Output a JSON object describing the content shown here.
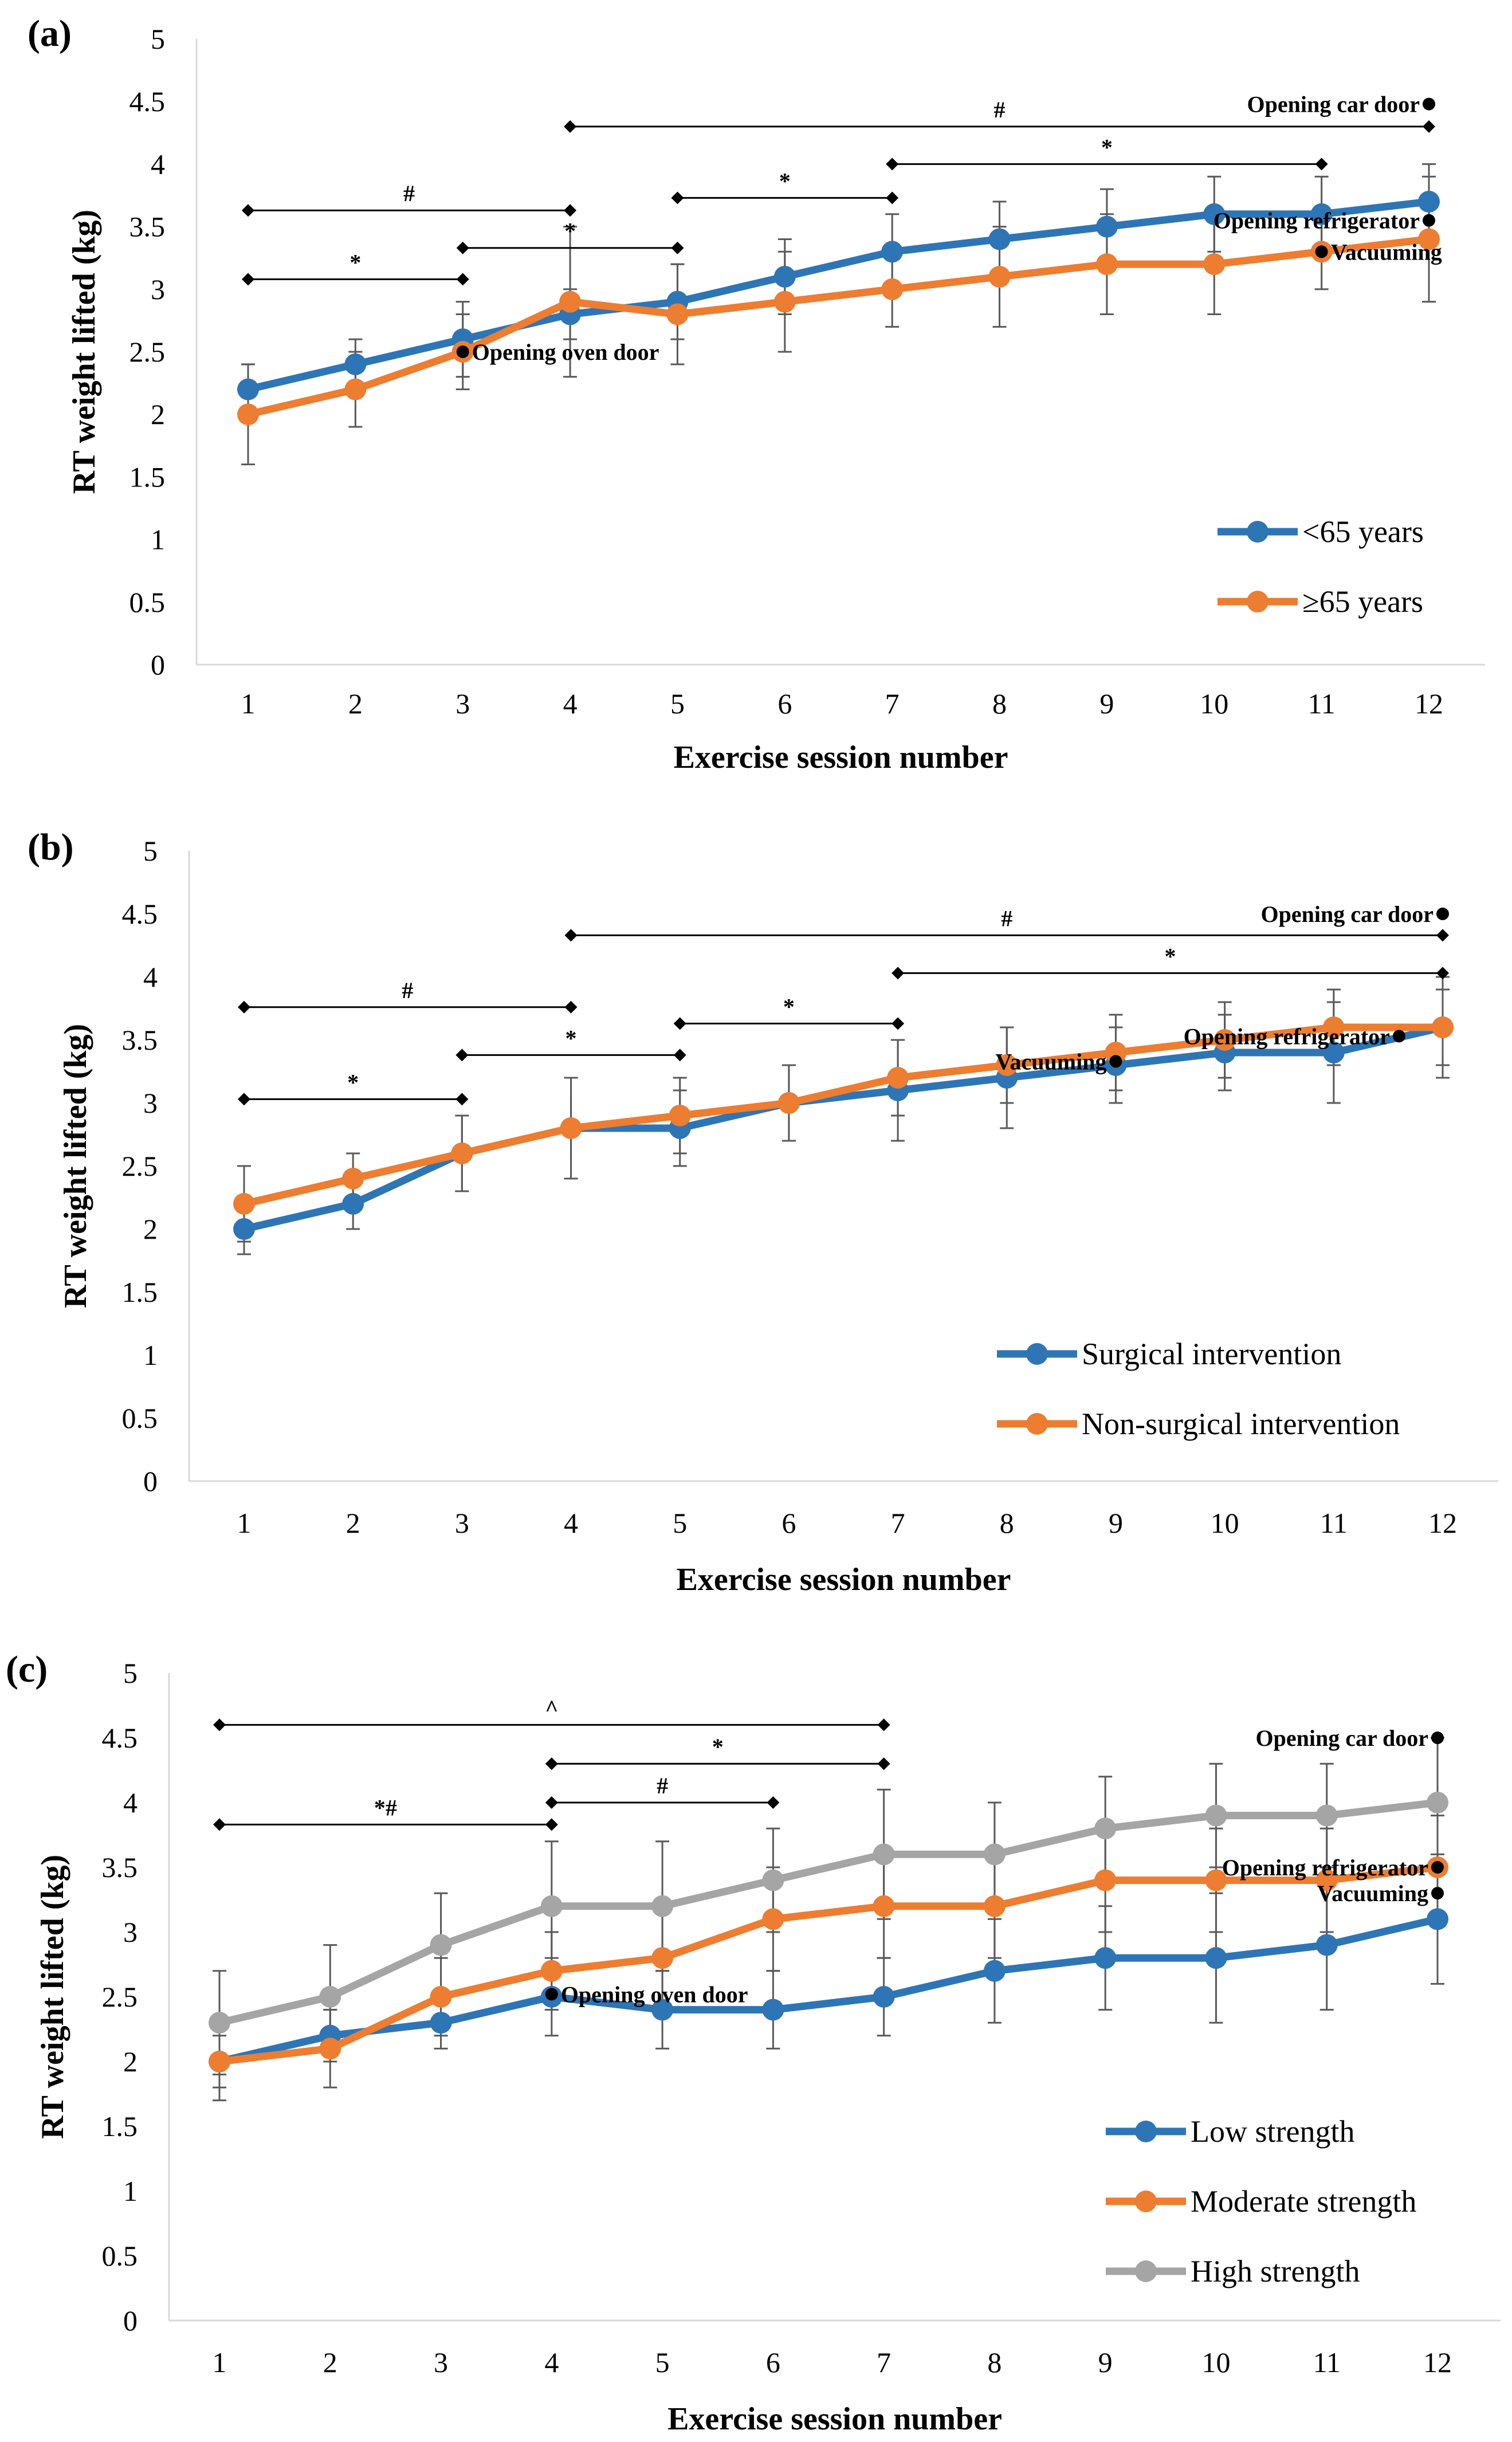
{
  "chart_data": [
    {
      "type": "line",
      "panel_label": "(a)",
      "xlabel": "Exercise session number",
      "ylabel": "RT weight lifted (kg)",
      "categories": [
        "1",
        "2",
        "3",
        "4",
        "5",
        "6",
        "7",
        "8",
        "9",
        "10",
        "11",
        "12"
      ],
      "y_ticks": [
        "0",
        "0.5",
        "1",
        "1.5",
        "2",
        "2.5",
        "3",
        "3.5",
        "4",
        "4.5",
        "5"
      ],
      "ylim": [
        0,
        5
      ],
      "series": [
        {
          "name": "<65 years",
          "color": "#2E75B6",
          "values": [
            2.2,
            2.4,
            2.6,
            2.8,
            2.9,
            3.1,
            3.3,
            3.4,
            3.5,
            3.6,
            3.6,
            3.7
          ],
          "errors": [
            0.2,
            0.2,
            0.3,
            0.2,
            0.3,
            0.3,
            0.3,
            0.3,
            0.3,
            0.3,
            0.3,
            0.3
          ]
        },
        {
          "name": "≥65 years",
          "color": "#ED7D31",
          "values": [
            2.0,
            2.2,
            2.5,
            2.9,
            2.8,
            2.9,
            3.0,
            3.1,
            3.2,
            3.2,
            3.3,
            3.4
          ],
          "errors": [
            0.4,
            0.3,
            0.3,
            0.6,
            0.4,
            0.4,
            0.3,
            0.4,
            0.4,
            0.4,
            0.3,
            0.5
          ]
        }
      ],
      "annotations": [
        {
          "text": "Opening oven door",
          "x": 3,
          "y": 2.5,
          "dot": "left"
        },
        {
          "text": "Opening refrigerator",
          "x": 12,
          "y": 3.55,
          "dot": "right"
        },
        {
          "text": "Vacuuming",
          "x": 11,
          "y": 3.3,
          "dot": "left"
        },
        {
          "text": "Opening car door",
          "x": 12,
          "y": 4.48,
          "dot": "right"
        }
      ],
      "brackets": [
        {
          "label": "#",
          "from": 1,
          "to": 4,
          "y": 3.63
        },
        {
          "label": "*",
          "from": 1,
          "to": 3,
          "y": 3.08
        },
        {
          "label": "*",
          "from": 3,
          "to": 5,
          "y": 3.33
        },
        {
          "label": "*",
          "from": 5,
          "to": 7,
          "y": 3.73
        },
        {
          "label": "#",
          "from": 4,
          "to": 12,
          "y": 4.3
        },
        {
          "label": "*",
          "from": 7,
          "to": 11,
          "y": 4.0
        }
      ]
    },
    {
      "type": "line",
      "panel_label": "(b)",
      "xlabel": "Exercise session number",
      "ylabel": "RT weight lifted (kg)",
      "categories": [
        "1",
        "2",
        "3",
        "4",
        "5",
        "6",
        "7",
        "8",
        "9",
        "10",
        "11",
        "12"
      ],
      "y_ticks": [
        "0",
        "0.5",
        "1",
        "1.5",
        "2",
        "2.5",
        "3",
        "3.5",
        "4",
        "4.5",
        "5"
      ],
      "ylim": [
        0,
        5
      ],
      "series": [
        {
          "name": "Surgical intervention",
          "color": "#2E75B6",
          "values": [
            2.0,
            2.2,
            2.6,
            2.8,
            2.8,
            3.0,
            3.1,
            3.2,
            3.3,
            3.4,
            3.4,
            3.6
          ],
          "errors": [
            0.2,
            0.2,
            0.3,
            0.4,
            0.3,
            0.3,
            0.4,
            0.4,
            0.3,
            0.3,
            0.4,
            0.4
          ]
        },
        {
          "name": "Non-surgical intervention",
          "color": "#ED7D31",
          "values": [
            2.2,
            2.4,
            2.6,
            2.8,
            2.9,
            3.0,
            3.2,
            3.3,
            3.4,
            3.5,
            3.6,
            3.6
          ],
          "errors": [
            0.3,
            0.2,
            0.3,
            0.4,
            0.3,
            0.3,
            0.3,
            0.3,
            0.3,
            0.3,
            0.3,
            0.3
          ]
        }
      ],
      "annotations": [
        {
          "text": "Vacuuming",
          "x": 9,
          "y": 3.33,
          "dot": "right"
        },
        {
          "text": "Opening refrigerator",
          "x": 11.6,
          "y": 3.53,
          "dot": "right"
        },
        {
          "text": "Opening car door",
          "x": 12,
          "y": 4.5,
          "dot": "right"
        }
      ],
      "brackets": [
        {
          "label": "#",
          "from": 1,
          "to": 4,
          "y": 3.76
        },
        {
          "label": "*",
          "from": 1,
          "to": 3,
          "y": 3.03
        },
        {
          "label": "*",
          "from": 3,
          "to": 5,
          "y": 3.38
        },
        {
          "label": "*",
          "from": 5,
          "to": 7,
          "y": 3.63
        },
        {
          "label": "#",
          "from": 4,
          "to": 12,
          "y": 4.33
        },
        {
          "label": "*",
          "from": 7,
          "to": 12,
          "y": 4.03
        }
      ]
    },
    {
      "type": "line",
      "panel_label": "(c)",
      "xlabel": "Exercise session number",
      "ylabel": "RT weight lifted (kg)",
      "categories": [
        "1",
        "2",
        "3",
        "4",
        "5",
        "6",
        "7",
        "8",
        "9",
        "10",
        "11",
        "12"
      ],
      "y_ticks": [
        "0",
        "0.5",
        "1",
        "1.5",
        "2",
        "2.5",
        "3",
        "3.5",
        "4",
        "4.5",
        "5"
      ],
      "ylim": [
        0,
        5
      ],
      "series": [
        {
          "name": "Low strength",
          "color": "#2E75B6",
          "values": [
            2.0,
            2.2,
            2.3,
            2.5,
            2.4,
            2.4,
            2.5,
            2.7,
            2.8,
            2.8,
            2.9,
            3.1
          ],
          "errors": [
            0.2,
            0.2,
            0.2,
            0.3,
            0.3,
            0.3,
            0.3,
            0.4,
            0.4,
            0.5,
            0.5,
            0.5
          ]
        },
        {
          "name": "Moderate strength",
          "color": "#ED7D31",
          "values": [
            2.0,
            2.1,
            2.5,
            2.7,
            2.8,
            3.1,
            3.2,
            3.2,
            3.4,
            3.4,
            3.4,
            3.5
          ],
          "errors": [
            0.3,
            0.3,
            0.3,
            0.3,
            0.4,
            0.4,
            0.4,
            0.4,
            0.4,
            0.4,
            0.4,
            0.4
          ]
        },
        {
          "name": "High strength",
          "color": "#A5A5A5",
          "values": [
            2.3,
            2.5,
            2.9,
            3.2,
            3.2,
            3.4,
            3.6,
            3.6,
            3.8,
            3.9,
            3.9,
            4.0
          ],
          "errors": [
            0.4,
            0.4,
            0.4,
            0.5,
            0.5,
            0.4,
            0.5,
            0.4,
            0.4,
            0.4,
            0.4,
            0.5
          ]
        }
      ],
      "annotations": [
        {
          "text": "Opening oven door",
          "x": 4,
          "y": 2.52,
          "dot": "left"
        },
        {
          "text": "Opening refrigerator",
          "x": 12,
          "y": 3.5,
          "dot": "right"
        },
        {
          "text": "Vacuuming",
          "x": 12,
          "y": 3.3,
          "dot": "right"
        },
        {
          "text": "Opening car door",
          "x": 12,
          "y": 4.5,
          "dot": "right"
        }
      ],
      "brackets": [
        {
          "label": "^",
          "from": 1,
          "to": 7,
          "y": 4.6
        },
        {
          "label": "*",
          "from": 4,
          "to": 7,
          "y": 4.3
        },
        {
          "label": "#",
          "from": 4,
          "to": 6,
          "y": 4.0
        },
        {
          "label": "*#",
          "from": 1,
          "to": 4,
          "y": 3.83
        }
      ]
    }
  ]
}
